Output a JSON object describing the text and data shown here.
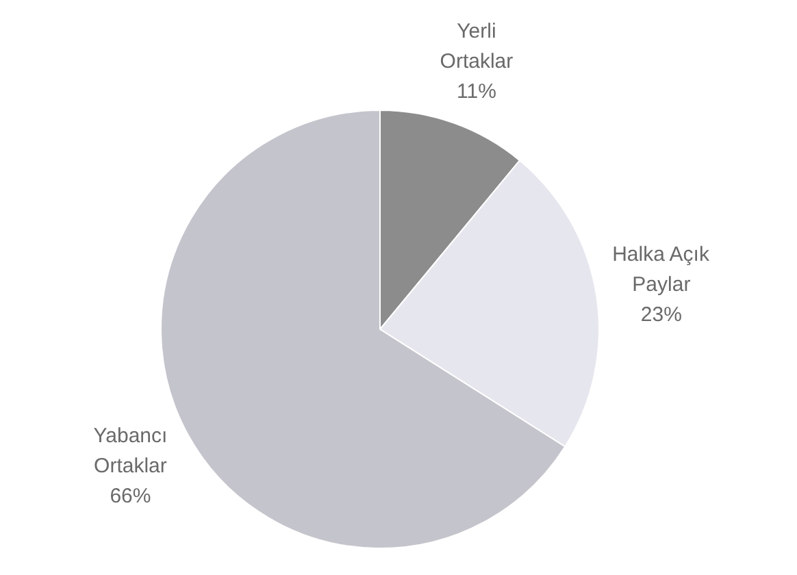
{
  "chart_data": {
    "type": "pie",
    "categories": [
      "Yerli Ortaklar",
      "Halka Açık Paylar",
      "Yabancı Ortaklar"
    ],
    "values": [
      11,
      23,
      66
    ],
    "colors": [
      "#8c8c8c",
      "#e6e6ee",
      "#c4c4cc"
    ],
    "value_labels": [
      "11%",
      "23%",
      "66%"
    ]
  }
}
